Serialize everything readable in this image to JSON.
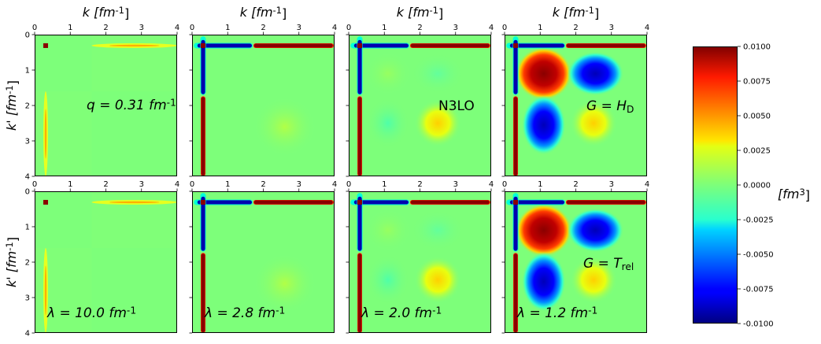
{
  "chart_data": {
    "type": "heatmap",
    "layout": "2 rows x 4 columns of panels sharing one colorbar",
    "x_axis": {
      "label": "k [fm^-1]",
      "position": "top",
      "ticks": [
        "0",
        "1",
        "2",
        "3",
        "4"
      ],
      "range": [
        0,
        4
      ]
    },
    "y_axis": {
      "label": "k' [fm^-1]",
      "ticks": [
        "0",
        "1",
        "2",
        "3",
        "4"
      ],
      "range": [
        0,
        4
      ],
      "inverted": true
    },
    "colorbar": {
      "label": "[fm^3]",
      "colormap": "jet",
      "range": [
        -0.01,
        0.01
      ],
      "ticks": [
        "0.0100",
        "0.0075",
        "0.0050",
        "0.0025",
        "0.0000",
        "-0.0025",
        "-0.0050",
        "-0.0075",
        "-0.0100"
      ]
    },
    "panels": [
      {
        "row": 0,
        "col": 0,
        "annotation": "q = 0.31 fm^-1",
        "variant": "weak"
      },
      {
        "row": 0,
        "col": 1,
        "annotation": "",
        "variant": "cross-weak"
      },
      {
        "row": 0,
        "col": 2,
        "annotation": "N3LO",
        "variant": "cross-mid"
      },
      {
        "row": 0,
        "col": 3,
        "annotation": "G = H_D",
        "variant": "cross-strong"
      },
      {
        "row": 1,
        "col": 0,
        "annotation": "λ = 10.0 fm^-1",
        "variant": "weak"
      },
      {
        "row": 1,
        "col": 1,
        "annotation": "λ = 2.8 fm^-1",
        "variant": "cross-weak"
      },
      {
        "row": 1,
        "col": 2,
        "annotation": "λ = 2.0 fm^-1",
        "variant": "cross-mid"
      },
      {
        "row": 1,
        "col": 3,
        "annotation": "λ = 1.2 fm^-1",
        "variant": "cross-strong",
        "annotation2": "G = T_rel"
      }
    ]
  }
}
